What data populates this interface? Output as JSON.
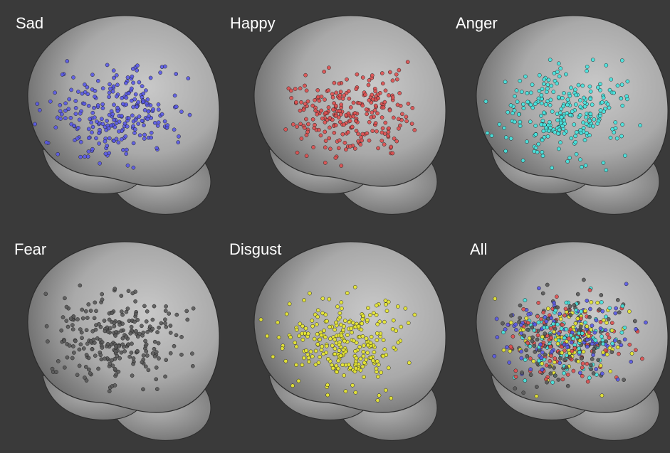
{
  "panels": [
    {
      "label": "Sad"
    },
    {
      "label": "Happy"
    },
    {
      "label": "Anger"
    },
    {
      "label": "Fear"
    },
    {
      "label": "Disgust"
    },
    {
      "label": "All"
    }
  ]
}
